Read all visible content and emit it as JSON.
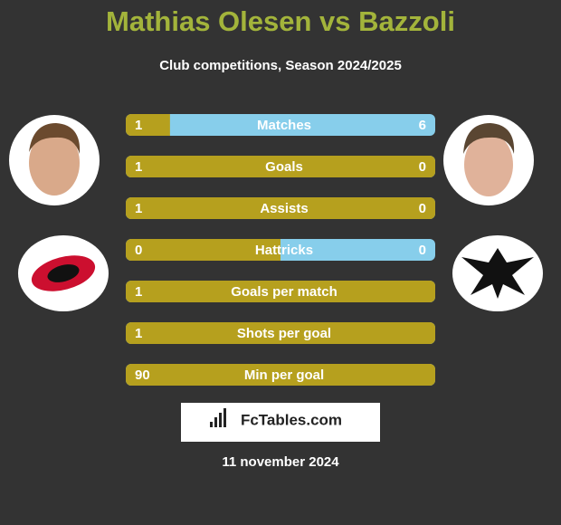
{
  "header": {
    "title": "Mathias Olesen vs Bazzoli",
    "subtitle": "Club competitions, Season 2024/2025"
  },
  "rows": [
    {
      "label": "Matches",
      "left": 1,
      "right": 6
    },
    {
      "label": "Goals",
      "left": 1,
      "right": 0
    },
    {
      "label": "Assists",
      "left": 1,
      "right": 0
    },
    {
      "label": "Hattricks",
      "left": 0,
      "right": 0
    },
    {
      "label": "Goals per match",
      "left": 1
    },
    {
      "label": "Shots per goal",
      "left": 1
    },
    {
      "label": "Min per goal",
      "left": 90
    }
  ],
  "brand": "FcTables.com",
  "date": "11 november 2024"
}
